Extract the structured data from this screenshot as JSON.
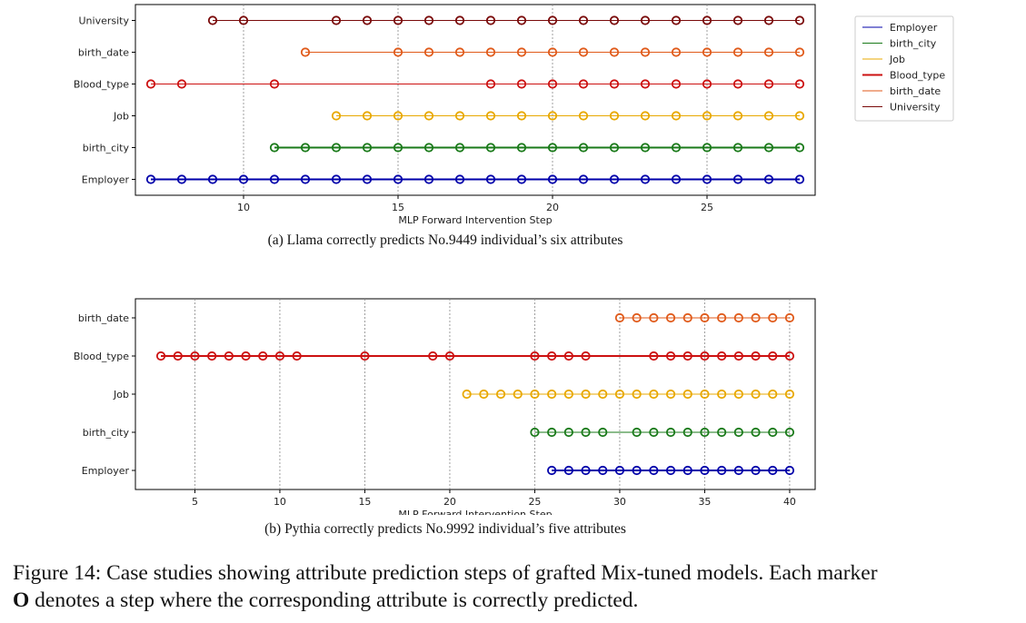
{
  "captions": {
    "a": "(a) Llama correctly predicts No.9449 individual’s six attributes",
    "b": "(b) Pythia correctly predicts No.9992 individual’s five attributes",
    "figure_line1": "Figure 14: Case studies showing attribute prediction steps of grafted Mix-tuned models. Each marker",
    "figure_marker": "O",
    "figure_line2": " denotes a step where the corresponding attribute is correctly predicted."
  },
  "chart_data": [
    {
      "type": "scatter",
      "title": "",
      "xlabel": "MLP Forward Intervention Step",
      "ylabel": "",
      "xlim": [
        6.5,
        28.5
      ],
      "xticks": [
        10,
        15,
        20,
        25
      ],
      "grid": "vertical dashed at x ticks",
      "legend": "right, outside plot",
      "categories": [
        "Employer",
        "birth_city",
        "Job",
        "Blood_type",
        "birth_date",
        "University"
      ],
      "series": [
        {
          "name": "Employer",
          "color": "#0000aa",
          "bold": true,
          "x": [
            7,
            8,
            9,
            10,
            11,
            12,
            13,
            14,
            15,
            16,
            17,
            18,
            19,
            20,
            21,
            22,
            23,
            24,
            25,
            26,
            27,
            28
          ]
        },
        {
          "name": "birth_city",
          "color": "#1a7a1a",
          "bold": true,
          "x": [
            11,
            12,
            13,
            14,
            15,
            16,
            17,
            18,
            19,
            20,
            21,
            22,
            23,
            24,
            25,
            26,
            27,
            28
          ]
        },
        {
          "name": "Job",
          "color": "#e8a800",
          "bold": false,
          "x": [
            13,
            14,
            15,
            16,
            17,
            18,
            19,
            20,
            21,
            22,
            23,
            24,
            25,
            26,
            27,
            28
          ]
        },
        {
          "name": "Blood_type",
          "color": "#cc1111",
          "bold": false,
          "x": [
            7,
            8,
            11,
            18,
            19,
            20,
            21,
            22,
            23,
            24,
            25,
            26,
            27,
            28
          ]
        },
        {
          "name": "birth_date",
          "color": "#e05a1a",
          "bold": false,
          "x": [
            12,
            15,
            16,
            17,
            18,
            19,
            20,
            21,
            22,
            23,
            24,
            25,
            26,
            27,
            28
          ]
        },
        {
          "name": "University",
          "color": "#7a0a0a",
          "bold": false,
          "x": [
            9,
            10,
            13,
            14,
            15,
            16,
            17,
            18,
            19,
            20,
            21,
            22,
            23,
            24,
            25,
            26,
            27,
            28
          ]
        }
      ],
      "legend_entries": [
        {
          "name": "Employer",
          "color": "#0000aa",
          "bold": false
        },
        {
          "name": "birth_city",
          "color": "#1a7a1a",
          "bold": false
        },
        {
          "name": "Job",
          "color": "#e8a800",
          "bold": false
        },
        {
          "name": "Blood_type",
          "color": "#cc1111",
          "bold": true
        },
        {
          "name": "birth_date",
          "color": "#e05a1a",
          "bold": false
        },
        {
          "name": "University",
          "color": "#7a0a0a",
          "bold": false
        }
      ]
    },
    {
      "type": "scatter",
      "title": "",
      "xlabel": "MLP Forward Intervention Step",
      "ylabel": "",
      "xlim": [
        1.5,
        41.5
      ],
      "xticks": [
        5,
        10,
        15,
        20,
        25,
        30,
        35,
        40
      ],
      "grid": "vertical dashed at x ticks",
      "legend": "none",
      "categories": [
        "Employer",
        "birth_city",
        "Job",
        "Blood_type",
        "birth_date"
      ],
      "series": [
        {
          "name": "Employer",
          "color": "#0000aa",
          "bold": true,
          "x": [
            26,
            27,
            28,
            29,
            30,
            31,
            32,
            33,
            34,
            35,
            36,
            37,
            38,
            39,
            40
          ]
        },
        {
          "name": "birth_city",
          "color": "#1a7a1a",
          "bold": false,
          "x": [
            25,
            26,
            27,
            28,
            29,
            31,
            32,
            33,
            34,
            35,
            36,
            37,
            38,
            39,
            40
          ]
        },
        {
          "name": "Job",
          "color": "#e8a800",
          "bold": false,
          "x": [
            21,
            22,
            23,
            24,
            25,
            26,
            27,
            28,
            29,
            30,
            31,
            32,
            33,
            34,
            35,
            36,
            37,
            38,
            39,
            40
          ]
        },
        {
          "name": "Blood_type",
          "color": "#cc1111",
          "bold": true,
          "x": [
            3,
            4,
            5,
            6,
            7,
            8,
            9,
            10,
            11,
            15,
            19,
            20,
            25,
            26,
            27,
            28,
            32,
            33,
            34,
            35,
            36,
            37,
            38,
            39,
            40
          ]
        },
        {
          "name": "birth_date",
          "color": "#e05a1a",
          "bold": false,
          "x": [
            30,
            31,
            32,
            33,
            34,
            35,
            36,
            37,
            38,
            39,
            40
          ]
        }
      ]
    }
  ]
}
